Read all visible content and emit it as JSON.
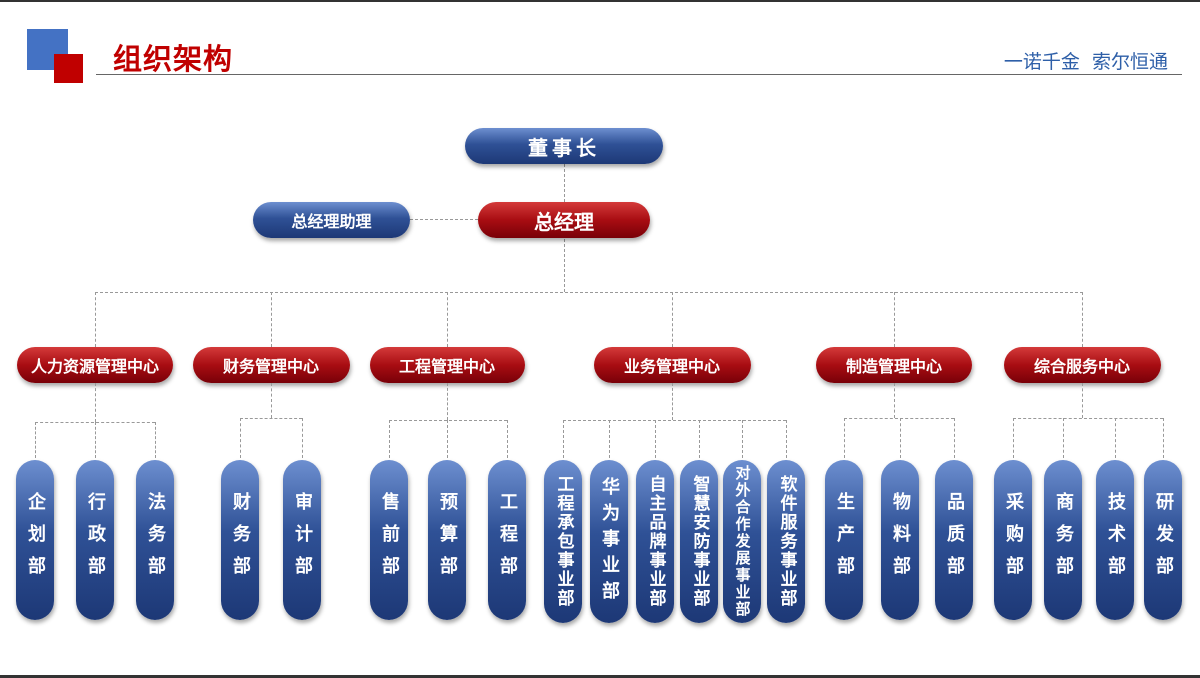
{
  "header": {
    "title": "组织架构",
    "slogan": "一诺千金  索尔恒通"
  },
  "colors": {
    "accent_red": "#c00000",
    "accent_blue": "#4472c4",
    "node_blue": "#2f5196",
    "node_red": "#a80d12"
  },
  "org": {
    "chairman": "董事长",
    "gm": "总经理",
    "gm_assistant": "总经理助理",
    "centers": [
      {
        "name": "人力资源管理中心",
        "departments": [
          "企划部",
          "行政部",
          "法务部"
        ]
      },
      {
        "name": "财务管理中心",
        "departments": [
          "财务部",
          "审计部"
        ]
      },
      {
        "name": "工程管理中心",
        "departments": [
          "售前部",
          "预算部",
          "工程部"
        ]
      },
      {
        "name": "业务管理中心",
        "departments": [
          "工程承包事业部",
          "华为事业部",
          "自主品牌事业部",
          "智慧安防事业部",
          "对外合作发展事业部",
          "软件服务事业部"
        ]
      },
      {
        "name": "制造管理中心",
        "departments": [
          "生产部",
          "物料部",
          "品质部"
        ]
      },
      {
        "name": "综合服务中心",
        "departments": [
          "采购部",
          "商务部",
          "技术部",
          "研发部"
        ]
      }
    ]
  }
}
